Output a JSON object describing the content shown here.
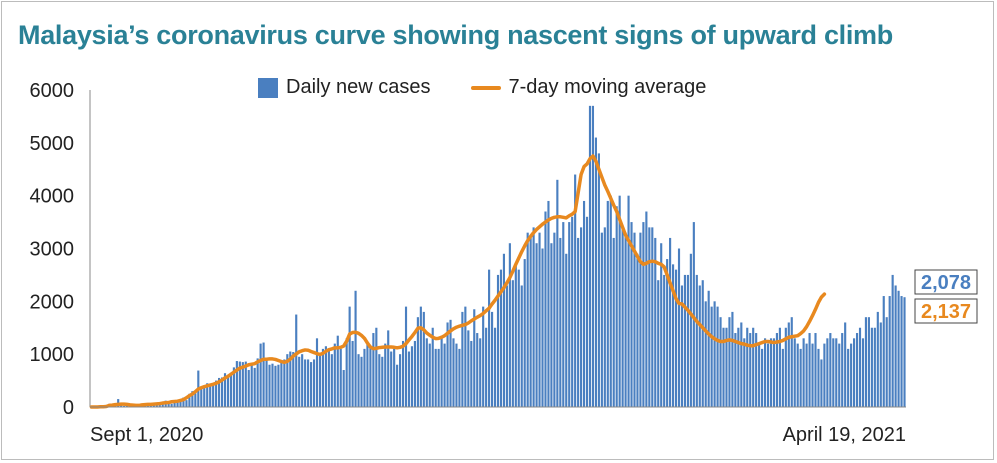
{
  "title": "Malaysia’s coronavirus curve showing nascent signs of upward climb",
  "legend": {
    "bars": "Daily new cases",
    "line": "7-day moving average"
  },
  "colors": {
    "bars": "#4a7fc0",
    "line": "#e8891f",
    "title": "#2a8196"
  },
  "end_labels": {
    "daily": "2,078",
    "average": "2,137"
  },
  "chart_data": {
    "type": "bar",
    "x_start": "Sept 1, 2020",
    "x_end": "April 19, 2021",
    "x_tick_labels": [
      "Sept 1, 2020",
      "April 19, 2021"
    ],
    "ylim": [
      0,
      6000
    ],
    "y_ticks": [
      0,
      1000,
      2000,
      3000,
      4000,
      5000,
      6000
    ],
    "grid": false,
    "legend_position": "top",
    "series": [
      {
        "name": "Daily new cases",
        "type": "bar",
        "values": [
          20,
          10,
          5,
          15,
          30,
          40,
          60,
          30,
          50,
          150,
          40,
          20,
          30,
          20,
          10,
          15,
          40,
          60,
          50,
          20,
          30,
          50,
          80,
          60,
          100,
          120,
          90,
          60,
          80,
          100,
          150,
          180,
          130,
          250,
          300,
          260,
          690,
          350,
          380,
          450,
          400,
          420,
          500,
          550,
          560,
          640,
          590,
          650,
          750,
          870,
          860,
          850,
          860,
          700,
          800,
          740,
          920,
          1200,
          1220,
          900,
          800,
          820,
          780,
          800,
          850,
          900,
          1000,
          1050,
          1040,
          1750,
          950,
          1000,
          900,
          900,
          850,
          900,
          1300,
          1000,
          1100,
          1150,
          1100,
          1000,
          1200,
          1350,
          1100,
          700,
          1300,
          1900,
          1250,
          2200,
          1000,
          950,
          1100,
          1200,
          1150,
          1400,
          1500,
          1000,
          950,
          1200,
          1450,
          1050,
          1100,
          800,
          1000,
          1250,
          1900,
          1050,
          1150,
          1250,
          1700,
          1900,
          1800,
          1300,
          1200,
          1500,
          1100,
          1100,
          1350,
          1200,
          1600,
          1650,
          1300,
          1200,
          1100,
          1800,
          1900,
          1450,
          1250,
          1850,
          1400,
          1300,
          1900,
          1500,
          2600,
          1800,
          1500,
          2500,
          2600,
          2900,
          2300,
          3100,
          2400,
          2700,
          2600,
          2300,
          2800,
          3300,
          3200,
          3400,
          3100,
          3300,
          3000,
          3700,
          3900,
          3100,
          3300,
          4300,
          3200,
          3500,
          2900,
          3500,
          3600,
          4400,
          3200,
          3400,
          3900,
          3600,
          5700,
          5700,
          5100,
          4800,
          3300,
          3400,
          3900,
          4000,
          3200,
          3800,
          4000,
          3400,
          3300,
          4000,
          3500,
          3300,
          2900,
          3300,
          3500,
          3700,
          3400,
          3400,
          3200,
          2400,
          3100,
          2500,
          2800,
          3200,
          2700,
          2600,
          3000,
          2300,
          2500,
          2500,
          2900,
          3500,
          2500,
          2300,
          2400,
          2000,
          2200,
          1900,
          2000,
          1900,
          1700,
          1500,
          1500,
          1700,
          1800,
          1400,
          1500,
          1600,
          1300,
          1500,
          1400,
          1500,
          1400,
          1200,
          1100,
          1300,
          1200,
          1300,
          1300,
          1400,
          1500,
          1100,
          1500,
          1600,
          1700,
          1300,
          1200,
          1100,
          1300,
          1200,
          1400,
          1200,
          1400,
          1100,
          900,
          1200,
          1300,
          1400,
          1300,
          1300,
          1200,
          1400,
          1600,
          1100,
          1200,
          1300,
          1400,
          1500,
          1300,
          1700,
          1700,
          1500,
          1500,
          1800,
          1600,
          2100,
          1700,
          2100,
          2500,
          2300,
          2200,
          2100,
          2078
        ]
      },
      {
        "name": "7-day moving average",
        "type": "line",
        "values": [
          0,
          0,
          0,
          5,
          5,
          10,
          30,
          35,
          45,
          50,
          55,
          55,
          50,
          40,
          35,
          30,
          30,
          40,
          45,
          50,
          50,
          55,
          60,
          65,
          75,
          80,
          85,
          100,
          105,
          110,
          125,
          140,
          175,
          215,
          245,
          290,
          340,
          365,
          385,
          400,
          415,
          430,
          450,
          475,
          510,
          550,
          580,
          620,
          660,
          700,
          735,
          755,
          775,
          800,
          810,
          820,
          855,
          880,
          905,
          905,
          910,
          910,
          900,
          880,
          860,
          845,
          865,
          905,
          965,
          1005,
          1045,
          1065,
          1080,
          1075,
          1050,
          1030,
          1010,
          995,
          1015,
          1055,
          1085,
          1100,
          1120,
          1120,
          1130,
          1155,
          1245,
          1380,
          1410,
          1415,
          1395,
          1355,
          1300,
          1210,
          1135,
          1105,
          1110,
          1125,
          1130,
          1135,
          1135,
          1135,
          1130,
          1120,
          1130,
          1150,
          1200,
          1270,
          1335,
          1410,
          1490,
          1500,
          1460,
          1400,
          1360,
          1320,
          1295,
          1300,
          1320,
          1350,
          1395,
          1440,
          1480,
          1510,
          1530,
          1545,
          1560,
          1590,
          1630,
          1665,
          1700,
          1730,
          1770,
          1820,
          1870,
          1950,
          2020,
          2100,
          2180,
          2260,
          2350,
          2450,
          2570,
          2700,
          2820,
          2940,
          3050,
          3150,
          3230,
          3300,
          3360,
          3410,
          3460,
          3500,
          3540,
          3570,
          3590,
          3600,
          3600,
          3590,
          3580,
          3620,
          3650,
          3700,
          4050,
          4400,
          4550,
          4600,
          4700,
          4750,
          4650,
          4500,
          4350,
          4200,
          4080,
          3950,
          3820,
          3700,
          3550,
          3400,
          3250,
          3150,
          3050,
          2950,
          2850,
          2750,
          2700,
          2720,
          2750,
          2760,
          2750,
          2720,
          2700,
          2650,
          2500,
          2350,
          2200,
          2050,
          1960,
          1950,
          1890,
          1830,
          1760,
          1690,
          1620,
          1560,
          1500,
          1440,
          1380,
          1330,
          1290,
          1260,
          1240,
          1240,
          1260,
          1270,
          1260,
          1240,
          1220,
          1200,
          1190,
          1170,
          1160,
          1160,
          1180,
          1200,
          1220,
          1240,
          1240,
          1230,
          1220,
          1230,
          1240,
          1260,
          1290,
          1320,
          1330,
          1340,
          1350,
          1390,
          1440,
          1520,
          1620,
          1730,
          1850,
          1980,
          2080,
          2137
        ]
      }
    ]
  }
}
